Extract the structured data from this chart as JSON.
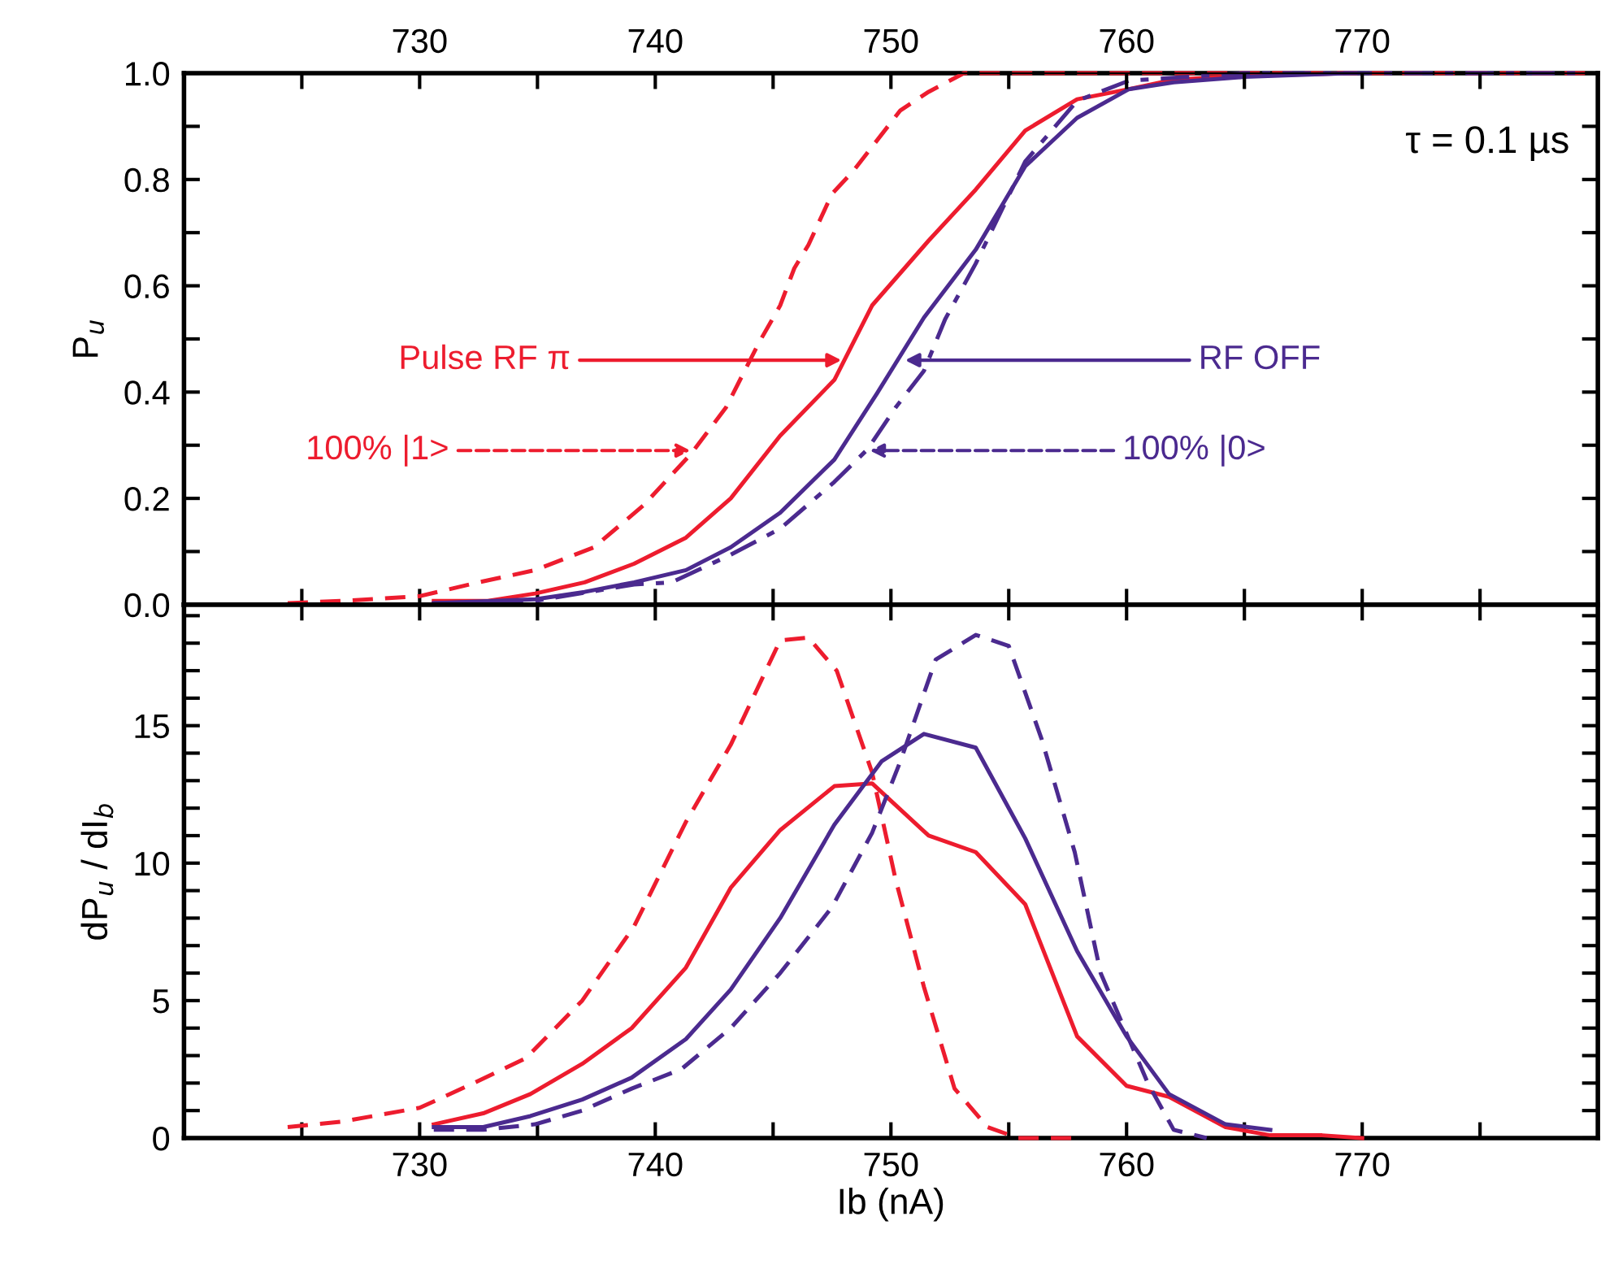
{
  "chart_data": [
    {
      "type": "line",
      "ylabel": "P$_{u}$",
      "marker": "none",
      "grid": false,
      "legend": false,
      "tick_labels": "y",
      "xlim": [
        720,
        780
      ],
      "xticks": [
        {
          "value": 725,
          "label": null
        },
        {
          "value": 730,
          "label": null
        },
        {
          "value": 735,
          "label": null
        },
        {
          "value": 740,
          "label": null
        },
        {
          "value": 745,
          "label": null
        },
        {
          "value": 750,
          "label": null
        },
        {
          "value": 755,
          "label": null
        },
        {
          "value": 760,
          "label": null
        },
        {
          "value": 765,
          "label": null
        },
        {
          "value": 770,
          "label": null
        },
        {
          "value": 775,
          "label": null
        }
      ],
      "x2lim": [
        720,
        780
      ],
      "x2ticks": [
        {
          "value": 725,
          "label": null
        },
        730,
        {
          "value": 735,
          "label": null
        },
        740,
        {
          "value": 745,
          "label": null
        },
        750,
        {
          "value": 755,
          "label": null
        },
        760,
        {
          "value": 765,
          "label": null
        },
        770,
        {
          "value": 775,
          "label": null
        }
      ],
      "ylim": [
        0,
        1
      ],
      "yticks": [
        {
          "value": 0,
          "label": "0.0"
        },
        {
          "value": 0.1,
          "label": null
        },
        {
          "value": 0.2,
          "label": "0.2"
        },
        {
          "value": 0.3,
          "label": null
        },
        {
          "value": 0.4,
          "label": "0.4"
        },
        {
          "value": 0.5,
          "label": null
        },
        {
          "value": 0.6,
          "label": "0.6"
        },
        {
          "value": 0.7,
          "label": null
        },
        {
          "value": 0.8,
          "label": "0.8"
        },
        {
          "value": 0.9,
          "label": null
        },
        {
          "value": 1,
          "label": "1.0"
        }
      ],
      "annotations": [
        "τ = 0.1 µs",
        {
          "text": "Pulse RF π",
          "x": 747.9,
          "y": 0.46
        },
        {
          "text": "RF OFF",
          "x": 750.6,
          "y": 0.46
        },
        {
          "text": "100% |1>",
          "x": 741.5,
          "y": 0.29
        },
        {
          "text": "100% |0>",
          "x": 749.1,
          "y": 0.29
        }
      ],
      "series": [
        {
          "color": "#ed1c2e",
          "line_style": "solid",
          "x": [
            730.6,
            732.9,
            734.9,
            737.0,
            739.1,
            741.3,
            743.2,
            745.3,
            747.6,
            749.2,
            751.6,
            753.6,
            755.7,
            757.9,
            760.1,
            762.0,
            765.0,
            769.4
          ],
          "values": [
            0.007,
            0.007,
            0.021,
            0.042,
            0.077,
            0.126,
            0.2,
            0.318,
            0.423,
            0.563,
            0.685,
            0.781,
            0.892,
            0.951,
            0.97,
            0.988,
            0.995,
            1.0
          ]
        },
        {
          "color": "#ed1c2e",
          "line_style": "dashed",
          "x": [
            724.4,
            726.7,
            730.0,
            732.5,
            734.9,
            737.4,
            739.5,
            741.5,
            743.0,
            744.4,
            745.3,
            745.9,
            746.5,
            747.5,
            748.4,
            750.4,
            751.6,
            753.1,
            779.5
          ],
          "values": [
            0.003,
            0.007,
            0.016,
            0.042,
            0.065,
            0.108,
            0.187,
            0.283,
            0.371,
            0.493,
            0.563,
            0.633,
            0.677,
            0.773,
            0.816,
            0.93,
            0.965,
            1.0,
            1.0
          ]
        },
        {
          "color": "#4b2a8f",
          "line_style": "solid",
          "x": [
            730.6,
            734.9,
            737.0,
            739.1,
            741.3,
            743.2,
            745.3,
            747.6,
            749.4,
            751.4,
            753.6,
            755.7,
            757.9,
            760.1,
            762.0,
            765.0,
            769.4
          ],
          "values": [
            0.003,
            0.01,
            0.024,
            0.042,
            0.065,
            0.108,
            0.173,
            0.273,
            0.397,
            0.54,
            0.668,
            0.825,
            0.916,
            0.97,
            0.983,
            0.993,
            1.0
          ]
        },
        {
          "color": "#4b2a8f",
          "line_style": "dashdot",
          "x": [
            730.6,
            734.9,
            736.8,
            739.1,
            740.7,
            743.2,
            745.3,
            747.6,
            749.0,
            750.2,
            751.4,
            752.3,
            753.6,
            755.7,
            757.9,
            760.1,
            765.0,
            779.5
          ],
          "values": [
            0.003,
            0.007,
            0.021,
            0.038,
            0.042,
            0.094,
            0.143,
            0.231,
            0.292,
            0.371,
            0.44,
            0.537,
            0.642,
            0.834,
            0.948,
            0.986,
            1.0,
            1.0
          ]
        }
      ]
    },
    {
      "type": "line",
      "xlabel": "Ib (nA)",
      "ylabel": "dP$_{u}$ / dI$_{b}$",
      "marker": "none",
      "grid": false,
      "legend": false,
      "xlim": [
        720,
        780
      ],
      "xticks": [
        {
          "value": 725,
          "label": null
        },
        730,
        {
          "value": 735,
          "label": null
        },
        740,
        {
          "value": 745,
          "label": null
        },
        750,
        {
          "value": 755,
          "label": null
        },
        760,
        {
          "value": 765,
          "label": null
        },
        770,
        {
          "value": 775,
          "label": null
        }
      ],
      "ylim": [
        0,
        19.4
      ],
      "yticks": [
        0,
        {
          "value": 1,
          "label": null
        },
        {
          "value": 2,
          "label": null
        },
        {
          "value": 3,
          "label": null
        },
        {
          "value": 4,
          "label": null
        },
        5,
        {
          "value": 6,
          "label": null
        },
        {
          "value": 7,
          "label": null
        },
        {
          "value": 8,
          "label": null
        },
        {
          "value": 9,
          "label": null
        },
        10,
        {
          "value": 11,
          "label": null
        },
        {
          "value": 12,
          "label": null
        },
        {
          "value": 13,
          "label": null
        },
        {
          "value": 14,
          "label": null
        },
        15,
        {
          "value": 16,
          "label": null
        },
        {
          "value": 17,
          "label": null
        },
        {
          "value": 18,
          "label": null
        },
        {
          "value": 19,
          "label": null
        }
      ],
      "series": [
        {
          "color": "#ed1c2e",
          "line_style": "solid",
          "x": [
            730.6,
            732.7,
            734.7,
            736.9,
            739.0,
            741.3,
            743.2,
            745.3,
            747.6,
            749.2,
            751.6,
            753.6,
            755.7,
            757.9,
            760.0,
            761.8,
            764.2,
            766.1,
            768.3,
            770.0
          ],
          "values": [
            0.5,
            0.9,
            1.6,
            2.7,
            4.0,
            6.2,
            9.1,
            11.2,
            12.8,
            12.9,
            11.0,
            10.4,
            8.5,
            3.7,
            1.9,
            1.5,
            0.4,
            0.1,
            0.1,
            0.0
          ]
        },
        {
          "color": "#ed1c2e",
          "line_style": "dashed",
          "x": [
            724.4,
            726.7,
            730.0,
            732.3,
            734.5,
            736.9,
            739.1,
            741.3,
            743.2,
            745.3,
            746.5,
            747.7,
            749.2,
            750.2,
            751.4,
            752.7,
            754.1,
            755.4,
            757.8
          ],
          "values": [
            0.4,
            0.6,
            1.1,
            2.0,
            2.9,
            5.0,
            7.7,
            11.5,
            14.3,
            18.1,
            18.2,
            17.0,
            13.3,
            9.4,
            5.5,
            1.8,
            0.4,
            0.0,
            0.0
          ]
        },
        {
          "color": "#4b2a8f",
          "line_style": "solid",
          "x": [
            730.6,
            732.7,
            734.7,
            736.9,
            739.0,
            741.3,
            743.2,
            745.3,
            747.6,
            749.6,
            751.4,
            753.6,
            755.7,
            757.9,
            760.0,
            761.8,
            764.2,
            766.1
          ],
          "values": [
            0.4,
            0.4,
            0.8,
            1.4,
            2.2,
            3.6,
            5.4,
            8.0,
            11.4,
            13.7,
            14.7,
            14.2,
            10.9,
            6.8,
            3.7,
            1.6,
            0.5,
            0.3
          ]
        },
        {
          "color": "#4b2a8f",
          "line_style": "dashed",
          "x": [
            730.6,
            732.7,
            734.9,
            736.9,
            739.0,
            741.1,
            743.2,
            745.3,
            747.5,
            749.2,
            750.4,
            751.9,
            753.6,
            755.0,
            756.4,
            757.8,
            758.9,
            760.0,
            760.9,
            762.0,
            763.4
          ],
          "values": [
            0.3,
            0.3,
            0.5,
            1.0,
            1.8,
            2.5,
            4.0,
            6.0,
            8.4,
            11.1,
            13.7,
            17.4,
            18.3,
            17.9,
            14.5,
            10.4,
            6.0,
            3.8,
            2.0,
            0.3,
            0.0
          ]
        }
      ]
    }
  ]
}
